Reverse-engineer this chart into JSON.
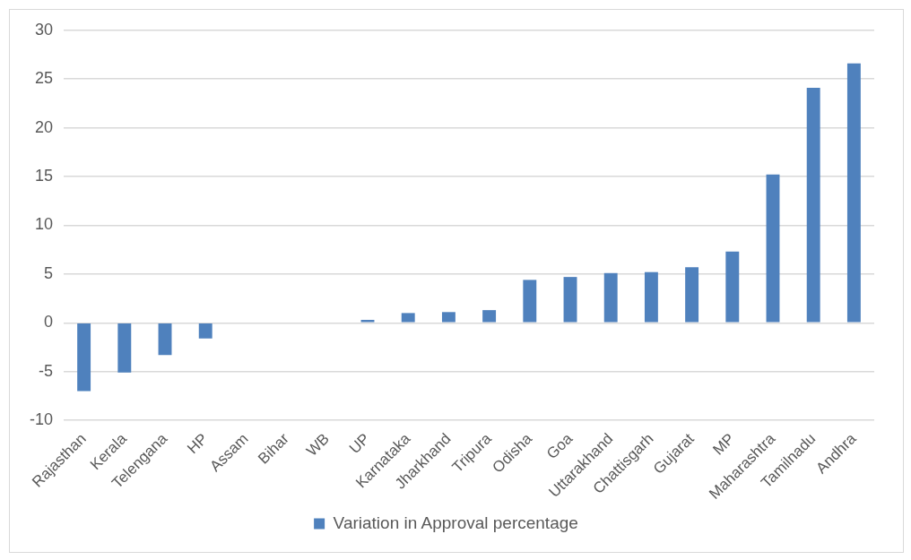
{
  "chart_data": {
    "type": "bar",
    "categories": [
      "Rajasthan",
      "Kerala",
      "Telengana",
      "HP",
      "Assam",
      "Bihar",
      "WB",
      "UP",
      "Karnataka",
      "Jharkhand",
      "Tripura",
      "Odisha",
      "Goa",
      "Uttarakhand",
      "Chattisgarh",
      "Gujarat",
      "MP",
      "Maharashtra",
      "Tamilnadu",
      "Andhra"
    ],
    "series": [
      {
        "name": "Variation in Approval percentage",
        "color": "#4f81bd",
        "values": [
          -7.0,
          -5.1,
          -3.3,
          -1.6,
          0,
          0,
          0,
          0.3,
          1.0,
          1.1,
          1.3,
          4.4,
          4.7,
          5.1,
          5.2,
          5.7,
          7.3,
          15.2,
          24.1,
          26.6
        ]
      }
    ],
    "ylim": [
      -10,
      30
    ],
    "yticks": [
      -10,
      -5,
      0,
      5,
      10,
      15,
      20,
      25,
      30
    ],
    "grid": "y",
    "legend": "bottom"
  }
}
